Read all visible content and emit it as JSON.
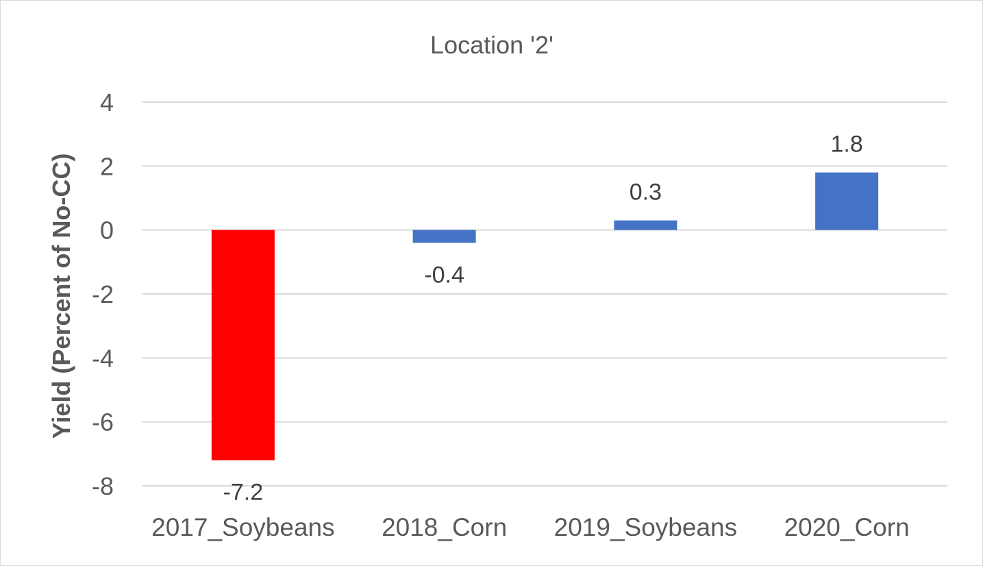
{
  "chart_data": {
    "type": "bar",
    "title": "Location '2'",
    "xlabel": "",
    "ylabel": "Yield (Percent of No-CC)",
    "categories": [
      "2017_Soybeans",
      "2018_Corn",
      "2019_Soybeans",
      "2020_Corn"
    ],
    "values": [
      -7.2,
      -0.4,
      0.3,
      1.8
    ],
    "data_labels": [
      "-7.2",
      "-0.4",
      "0.3",
      "1.8"
    ],
    "bar_colors": [
      "#ff0000",
      "#4472c4",
      "#4472c4",
      "#4472c4"
    ],
    "ylim": [
      -8,
      4
    ],
    "yticks": [
      4,
      2,
      0,
      -2,
      -4,
      -6,
      -8
    ],
    "grid": true,
    "legend": "none"
  }
}
